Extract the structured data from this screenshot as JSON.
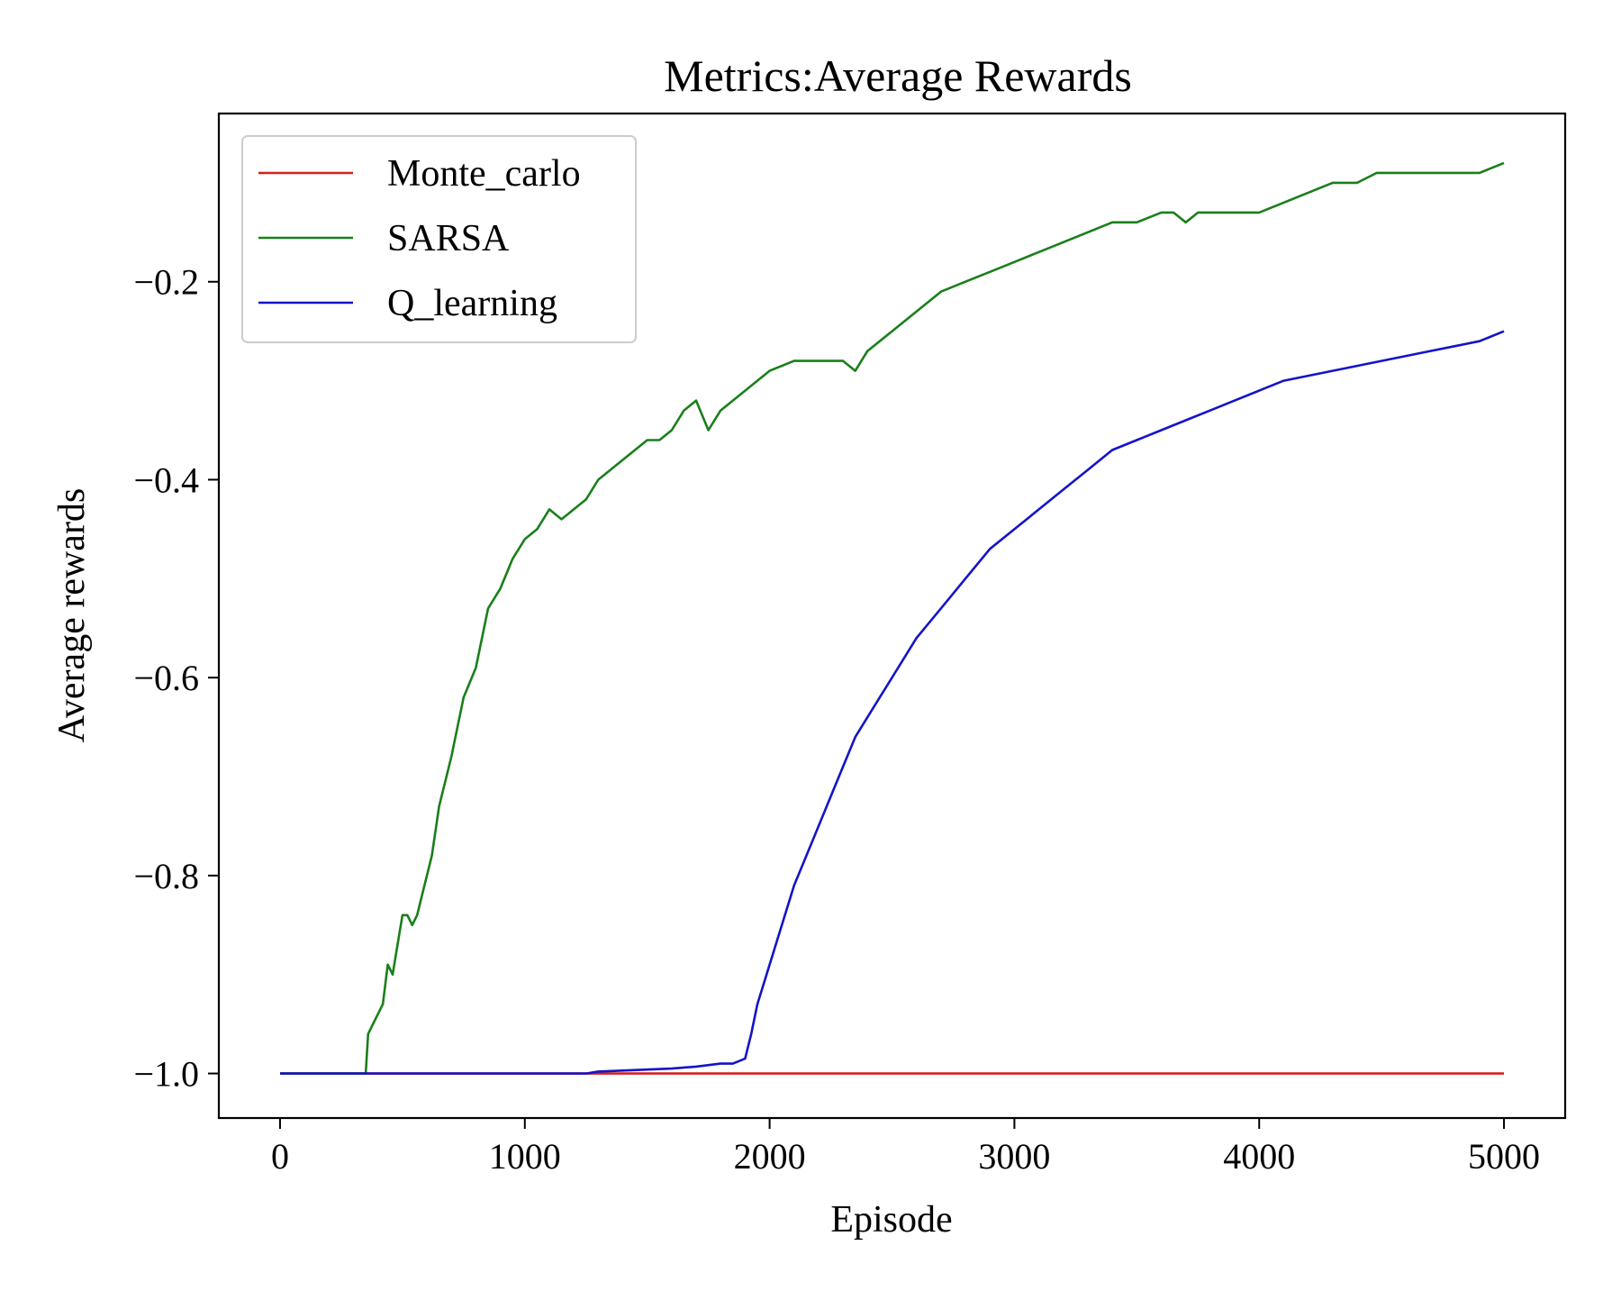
{
  "chart_data": {
    "type": "line",
    "title": "Metrics:Average Rewards",
    "xlabel": "Episode",
    "ylabel": "Average rewards",
    "xlim": [
      -250,
      5250
    ],
    "ylim": [
      -1.045,
      -0.03
    ],
    "xticks": [
      {
        "value": 0,
        "label": "0"
      },
      {
        "value": 1000,
        "label": "1000"
      },
      {
        "value": 2000,
        "label": "2000"
      },
      {
        "value": 3000,
        "label": "3000"
      },
      {
        "value": 4000,
        "label": "4000"
      },
      {
        "value": 5000,
        "label": "5000"
      }
    ],
    "yticks": [
      {
        "value": -1.0,
        "label": "−1.0"
      },
      {
        "value": -0.8,
        "label": "−0.8"
      },
      {
        "value": -0.6,
        "label": "−0.6"
      },
      {
        "value": -0.4,
        "label": "−0.4"
      },
      {
        "value": -0.2,
        "label": "−0.2"
      }
    ],
    "grid": false,
    "legend_position": "top-left",
    "series": [
      {
        "name": "Monte_carlo",
        "color": "#d62020",
        "x": [
          0,
          5000
        ],
        "y": [
          -1.0,
          -1.0
        ]
      },
      {
        "name": "SARSA",
        "color": "#1a7f1a",
        "x": [
          0,
          350,
          360,
          380,
          420,
          440,
          460,
          480,
          500,
          520,
          540,
          560,
          580,
          620,
          650,
          700,
          750,
          800,
          850,
          900,
          950,
          1000,
          1050,
          1100,
          1150,
          1200,
          1250,
          1300,
          1350,
          1400,
          1450,
          1500,
          1550,
          1600,
          1650,
          1700,
          1750,
          1800,
          1850,
          1900,
          1950,
          2000,
          2100,
          2200,
          2300,
          2350,
          2400,
          2450,
          2500,
          2550,
          2600,
          2700,
          2800,
          2900,
          3000,
          3100,
          3200,
          3300,
          3400,
          3500,
          3600,
          3650,
          3700,
          3750,
          3800,
          3900,
          4000,
          4100,
          4200,
          4300,
          4400,
          4480,
          4550,
          4600,
          4650,
          4700,
          4800,
          4900,
          5000
        ],
        "y": [
          -1.0,
          -1.0,
          -0.96,
          -0.95,
          -0.93,
          -0.89,
          -0.9,
          -0.87,
          -0.84,
          -0.84,
          -0.85,
          -0.84,
          -0.82,
          -0.78,
          -0.73,
          -0.68,
          -0.62,
          -0.59,
          -0.53,
          -0.51,
          -0.48,
          -0.46,
          -0.45,
          -0.43,
          -0.44,
          -0.43,
          -0.42,
          -0.4,
          -0.39,
          -0.38,
          -0.37,
          -0.36,
          -0.36,
          -0.35,
          -0.33,
          -0.32,
          -0.35,
          -0.33,
          -0.32,
          -0.31,
          -0.3,
          -0.29,
          -0.28,
          -0.28,
          -0.28,
          -0.29,
          -0.27,
          -0.26,
          -0.25,
          -0.24,
          -0.23,
          -0.21,
          -0.2,
          -0.19,
          -0.18,
          -0.17,
          -0.16,
          -0.15,
          -0.14,
          -0.14,
          -0.13,
          -0.13,
          -0.14,
          -0.13,
          -0.13,
          -0.13,
          -0.13,
          -0.12,
          -0.11,
          -0.1,
          -0.1,
          -0.09,
          -0.09,
          -0.09,
          -0.09,
          -0.09,
          -0.09,
          -0.09,
          -0.08
        ]
      },
      {
        "name": "Q_learning",
        "color": "#1414c8",
        "x": [
          0,
          1250,
          1300,
          1400,
          1500,
          1600,
          1700,
          1800,
          1850,
          1900,
          1925,
          1950,
          1975,
          2000,
          2050,
          2100,
          2150,
          2200,
          2250,
          2300,
          2350,
          2400,
          2450,
          2500,
          2550,
          2600,
          2700,
          2800,
          2900,
          3000,
          3100,
          3200,
          3300,
          3400,
          3500,
          3600,
          3700,
          3800,
          3900,
          4000,
          4100,
          4200,
          4300,
          4400,
          4500,
          4600,
          4700,
          4800,
          4900,
          5000
        ],
        "y": [
          -1.0,
          -1.0,
          -0.998,
          -0.997,
          -0.996,
          -0.995,
          -0.993,
          -0.99,
          -0.99,
          -0.985,
          -0.96,
          -0.93,
          -0.91,
          -0.89,
          -0.85,
          -0.81,
          -0.78,
          -0.75,
          -0.72,
          -0.69,
          -0.66,
          -0.64,
          -0.62,
          -0.6,
          -0.58,
          -0.56,
          -0.53,
          -0.5,
          -0.47,
          -0.45,
          -0.43,
          -0.41,
          -0.39,
          -0.37,
          -0.36,
          -0.35,
          -0.34,
          -0.33,
          -0.32,
          -0.31,
          -0.3,
          -0.295,
          -0.29,
          -0.285,
          -0.28,
          -0.275,
          -0.27,
          -0.265,
          -0.26,
          -0.25
        ]
      }
    ]
  }
}
